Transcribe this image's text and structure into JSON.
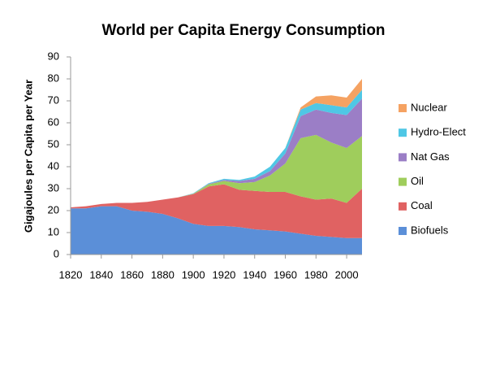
{
  "chart_data": {
    "type": "stacked-area",
    "title": "World per Capita Energy Consumption",
    "y_label": "Gigajoules per Capita per Year",
    "x": [
      1820,
      1830,
      1840,
      1850,
      1860,
      1870,
      1880,
      1890,
      1900,
      1910,
      1920,
      1930,
      1940,
      1950,
      1960,
      1970,
      1980,
      1990,
      2000,
      2010
    ],
    "xlim": [
      1820,
      2010
    ],
    "xticks": [
      1820,
      1840,
      1860,
      1880,
      1900,
      1920,
      1940,
      1960,
      1980,
      2000
    ],
    "ylim": [
      0,
      90
    ],
    "yticks": [
      0,
      10,
      20,
      30,
      40,
      50,
      60,
      70,
      80,
      90
    ],
    "grid": false,
    "series": [
      {
        "name": "Biofuels",
        "color": "#5b8fd8",
        "values": [
          21,
          21,
          22,
          22,
          20,
          19.5,
          18.5,
          16.5,
          14,
          13,
          13,
          12.5,
          11.5,
          11,
          10.5,
          9.5,
          8.5,
          8,
          7.5,
          7.5
        ]
      },
      {
        "name": "Coal",
        "color": "#e06262",
        "values": [
          0.5,
          1,
          1,
          1.5,
          3.5,
          4.5,
          6.5,
          9.5,
          13.5,
          18,
          19,
          17,
          17.5,
          17.5,
          18,
          17,
          16.5,
          17.5,
          16,
          22.5
        ]
      },
      {
        "name": "Oil",
        "color": "#9fcd5c",
        "values": [
          0,
          0,
          0,
          0,
          0,
          0,
          0,
          0,
          0.2,
          1,
          1.5,
          3,
          4,
          7.5,
          13,
          26.5,
          29.5,
          25.5,
          25,
          24
        ]
      },
      {
        "name": "Nat Gas",
        "color": "#9b7ec6",
        "values": [
          0,
          0,
          0,
          0,
          0,
          0,
          0,
          0,
          0.1,
          0.2,
          0.5,
          1,
          1.5,
          2,
          4.5,
          10,
          11.5,
          13.5,
          15,
          17
        ]
      },
      {
        "name": "Hydro-Elect",
        "color": "#4fc7e5",
        "values": [
          0,
          0,
          0,
          0,
          0,
          0,
          0,
          0,
          0.1,
          0.3,
          0.5,
          0.5,
          1,
          2,
          2.5,
          3,
          3,
          3.5,
          3.5,
          4
        ]
      },
      {
        "name": "Nuclear",
        "color": "#f5a262",
        "values": [
          0,
          0,
          0,
          0,
          0,
          0,
          0,
          0,
          0,
          0,
          0,
          0,
          0,
          0,
          0,
          1,
          3,
          4.5,
          4.5,
          5
        ]
      }
    ]
  }
}
